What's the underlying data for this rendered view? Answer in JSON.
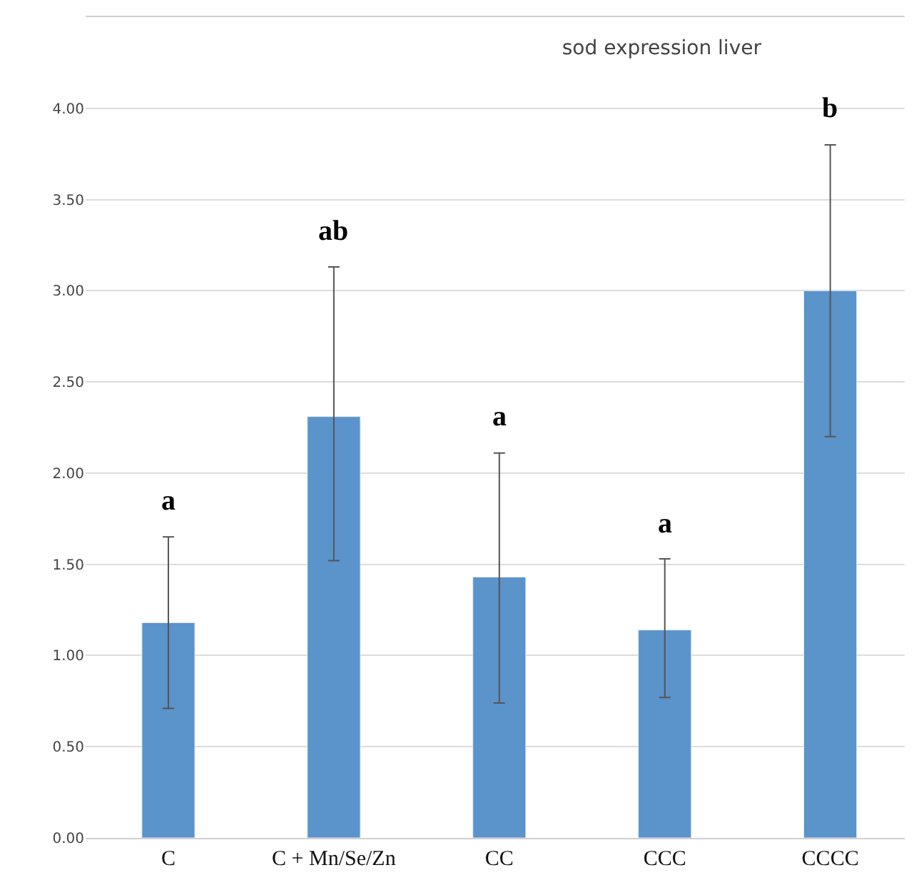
{
  "chart_data": {
    "type": "bar",
    "title": "sod expression liver",
    "categories": [
      "C",
      "C + Mn/Se/Zn",
      "CC",
      "CCC",
      "CCCC"
    ],
    "values": [
      1.18,
      2.31,
      1.43,
      1.14,
      3.0
    ],
    "errors": [
      [
        0.71,
        1.65
      ],
      [
        1.52,
        3.13
      ],
      [
        0.74,
        2.11
      ],
      [
        0.77,
        1.53
      ],
      [
        2.2,
        3.8
      ]
    ],
    "color": "#5b93cb",
    "ylim": [
      0,
      4.5
    ],
    "yticks": [
      {
        "value": 0,
        "label": "0.00"
      },
      {
        "value": 0.5,
        "label": "0.50"
      },
      {
        "value": 1,
        "label": "1.00"
      },
      {
        "value": 1.5,
        "label": "1.50"
      },
      {
        "value": 2,
        "label": "2.00"
      },
      {
        "value": 2.5,
        "label": "2.50"
      },
      {
        "value": 3,
        "label": "3.00"
      },
      {
        "value": 3.5,
        "label": "3.50"
      },
      {
        "value": 4,
        "label": "4.00"
      },
      {
        "value": 4.5,
        "label": null
      }
    ],
    "grid": "y",
    "annotations": [
      {
        "text": "a",
        "x": "C",
        "y": 1.65
      },
      {
        "text": "ab",
        "x": "C + Mn/Se/Zn",
        "y": 3.13
      },
      {
        "text": "a",
        "x": "CC",
        "y": 2.11
      },
      {
        "text": "a",
        "x": "CCC",
        "y": 1.53
      },
      {
        "text": "b",
        "x": "CCCC",
        "y": 3.8
      }
    ]
  }
}
